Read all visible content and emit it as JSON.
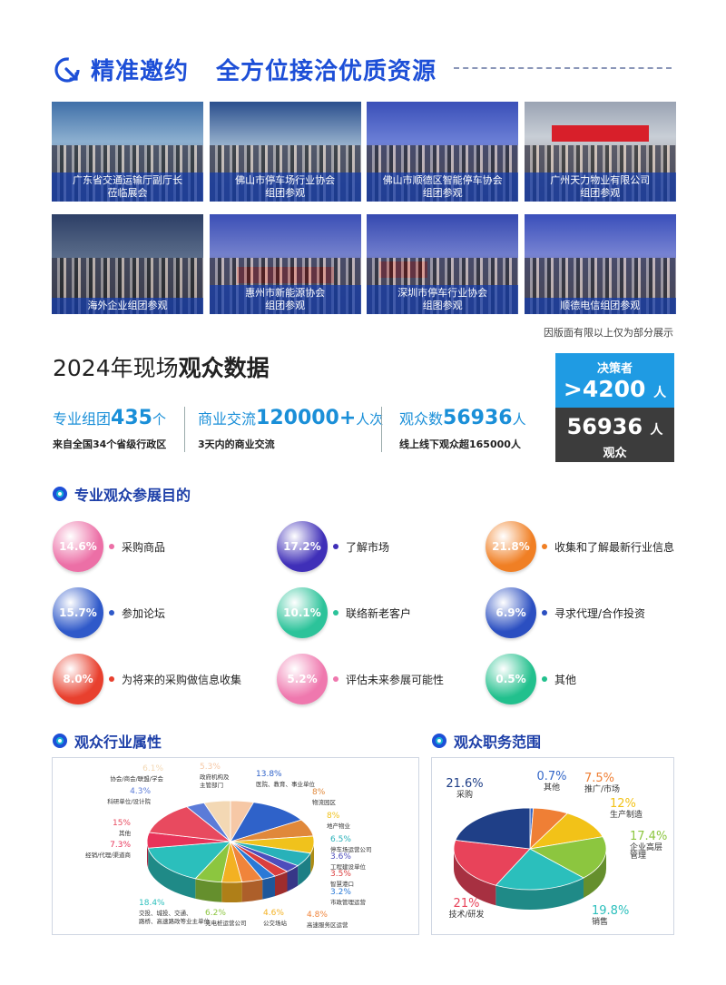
{
  "header": {
    "title_part1": "精准邀约",
    "title_part2": "全方位接洽优质资源"
  },
  "photos": [
    {
      "line1": "广东省交通运输厅副厅长",
      "line2": "莅临展会"
    },
    {
      "line1": "佛山市停车场行业协会",
      "line2": "组团参观"
    },
    {
      "line1": "佛山市顺德区智能停车协会",
      "line2": "组团参观"
    },
    {
      "line1": "广州天力物业有限公司",
      "line2": "组团参观"
    },
    {
      "line1": "海外企业组团参观",
      "line2": ""
    },
    {
      "line1": "惠州市新能源协会",
      "line2": "组团参观"
    },
    {
      "line1": "深圳市停车行业协会",
      "line2": "组图参观"
    },
    {
      "line1": "顺德电信组团参观",
      "line2": ""
    }
  ],
  "photo_notice": "因版面有限以上仅为部分展示",
  "stats": {
    "title_normal": "2024年现场",
    "title_bold": "观众数据",
    "items": [
      {
        "prefix": "专业组团",
        "number": "435",
        "unit": "个",
        "sub": "来自全国34个省级行政区"
      },
      {
        "prefix": "商业交流",
        "number": "120000+",
        "unit": "人次",
        "sub": "3天内的商业交流"
      },
      {
        "prefix": "观众数",
        "number": "56936",
        "unit": "人",
        "sub": "线上线下观众超165000人"
      }
    ],
    "decision_label": "决策者",
    "decision_value": ">4200",
    "decision_unit": "人",
    "visitors_value": "56936",
    "visitors_unit": "人",
    "visitors_label": "观众"
  },
  "purpose_section": {
    "title": "专业观众参展目的",
    "items": [
      {
        "pct": "14.6%",
        "label": "采购商品",
        "color": "#ec6fa6"
      },
      {
        "pct": "17.2%",
        "label": "了解市场",
        "color": "#3f2fb8"
      },
      {
        "pct": "21.8%",
        "label": "收集和了解最新行业信息",
        "color": "#f07f24"
      },
      {
        "pct": "15.7%",
        "label": "参加论坛",
        "color": "#2f59c9"
      },
      {
        "pct": "10.1%",
        "label": "联络新老客户",
        "color": "#2cc39a"
      },
      {
        "pct": "6.9%",
        "label": "寻求代理/合作投资",
        "color": "#2b4fc1"
      },
      {
        "pct": "8.0%",
        "label": "为将来的采购做信息收集",
        "color": "#e8402e"
      },
      {
        "pct": "5.2%",
        "label": "评估未来参展可能性",
        "color": "#ef78ae"
      },
      {
        "pct": "0.5%",
        "label": "其他",
        "color": "#22c08d"
      }
    ]
  },
  "industry_section": {
    "title": "观众行业属性"
  },
  "role_section": {
    "title": "观众职务范围"
  },
  "chart_data": [
    {
      "type": "pie",
      "title": "观众行业属性",
      "slices": [
        {
          "label": "政府机构及主管部门",
          "value": 5.3,
          "color": "#f6c8a6"
        },
        {
          "label": "医院、教育、事业单位",
          "value": 13.8,
          "color": "#2f62c9"
        },
        {
          "label": "物流园区",
          "value": 8,
          "color": "#e0883a"
        },
        {
          "label": "地产物业",
          "value": 8,
          "color": "#f0c21c"
        },
        {
          "label": "停车场运营公司",
          "value": 6.5,
          "color": "#28b1b9"
        },
        {
          "label": "工程建设单位",
          "value": 3.6,
          "color": "#4d4dbc"
        },
        {
          "label": "智慧港口",
          "value": 3.5,
          "color": "#db3e3e"
        },
        {
          "label": "市政管理运营",
          "value": 3.2,
          "color": "#2a79d6"
        },
        {
          "label": "高速服务区运营",
          "value": 4.8,
          "color": "#f0843b"
        },
        {
          "label": "公交场站",
          "value": 4.6,
          "color": "#f3b122"
        },
        {
          "label": "充电桩运营公司",
          "value": 6.2,
          "color": "#8cc63f"
        },
        {
          "label": "交投、城投、交通、路桥、高速路政等业主单位",
          "value": 18.4,
          "color": "#2bbfbc"
        },
        {
          "label": "经销/代理/渠道商",
          "value": 7.3,
          "color": "#e8345a"
        },
        {
          "label": "其他",
          "value": 15,
          "color": "#e84a5f"
        },
        {
          "label": "科研单位/设计院",
          "value": 4.3,
          "color": "#5b7bd8"
        },
        {
          "label": "协会/商会/联盟/学会",
          "value": 6.1,
          "color": "#f3d8b4"
        }
      ],
      "value_labels": [
        "5.3%",
        "13.8%",
        "8%",
        "8%",
        "6.5%",
        "3.6%",
        "3.5%",
        "3.2%",
        "4.8%",
        "4.6%",
        "6.2%",
        "18.4%",
        "7.3%",
        "15%",
        "4.3%",
        "6.1%"
      ]
    },
    {
      "type": "pie",
      "title": "观众职务范围",
      "slices": [
        {
          "label": "其他",
          "value": 0.7,
          "color": "#3467c8"
        },
        {
          "label": "推广/市场",
          "value": 7.5,
          "color": "#ef7f35"
        },
        {
          "label": "生产制造",
          "value": 12,
          "color": "#f2c218"
        },
        {
          "label": "企业高层管理",
          "value": 17.4,
          "color": "#8cc63f"
        },
        {
          "label": "销售",
          "value": 19.8,
          "color": "#2bbfbc"
        },
        {
          "label": "技术/研发",
          "value": 21,
          "color": "#e8435a"
        },
        {
          "label": "采购",
          "value": 21.6,
          "color": "#1f3f87"
        }
      ],
      "value_labels": [
        "0.7%",
        "7.5%",
        "12%",
        "17.4%",
        "19.8%",
        "21%",
        "21.6%"
      ]
    }
  ]
}
